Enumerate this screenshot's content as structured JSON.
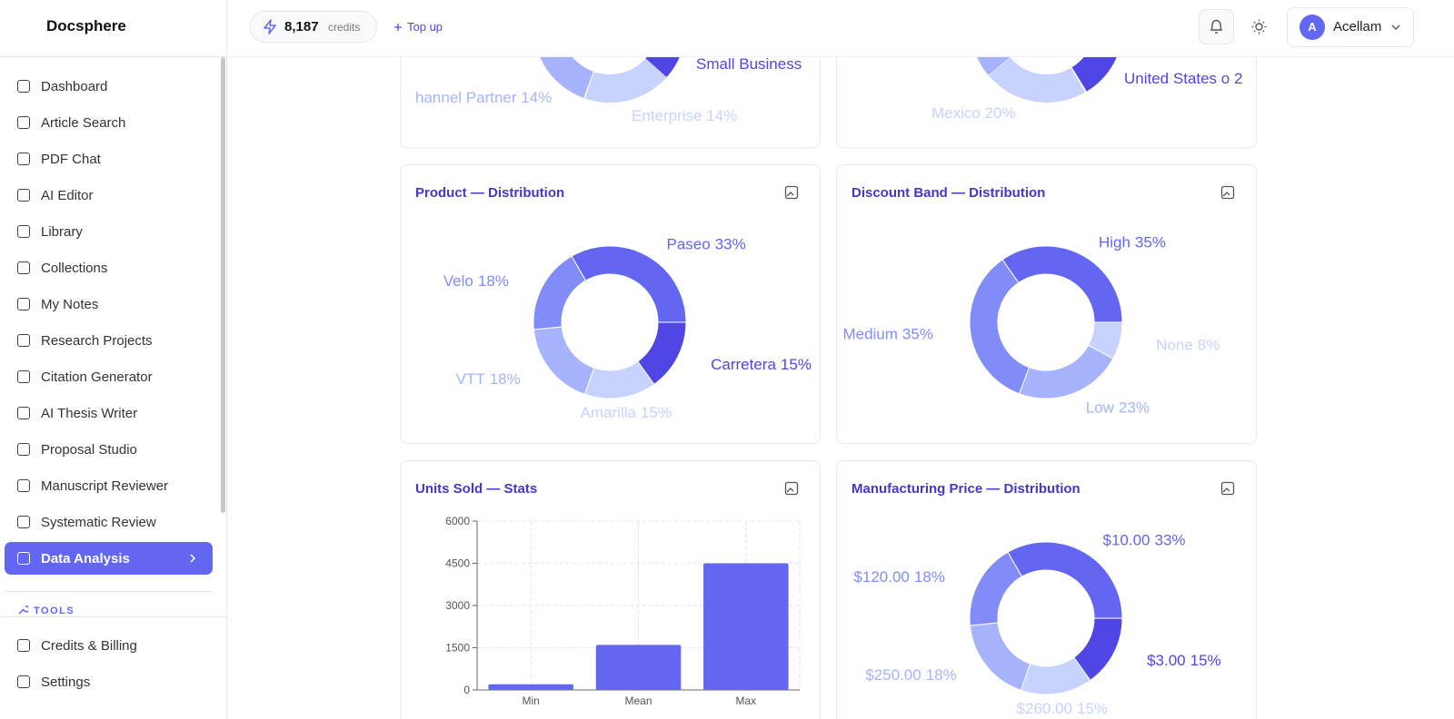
{
  "sidebar": {
    "brand": "Docsphere",
    "nav": [
      "Dashboard",
      "Article Search",
      "PDF Chat",
      "AI Editor",
      "Library",
      "Collections",
      "My Notes",
      "Research Projects",
      "Citation Generator",
      "AI Thesis Writer",
      "Proposal Studio",
      "Manuscript Reviewer",
      "Systematic Review",
      "Data Analysis"
    ],
    "section": "TOOLS",
    "bottom": [
      "Credits & Billing",
      "Settings"
    ]
  },
  "topbar": {
    "credits": "8,187",
    "credits_unit": "credits",
    "top_up": "Top up",
    "avatar": "A",
    "user": "Acellam"
  },
  "partial_cards": [
    {
      "labels": [
        "Small Business",
        "hannel Partner 14%",
        "Enterprise 14%"
      ]
    },
    {
      "labels": [
        "United States o 2",
        "Mexico 20%"
      ]
    }
  ],
  "chart_data": [
    {
      "type": "donut",
      "title": "Product — Distribution",
      "categories": [
        "Paseo",
        "Carretera",
        "Amarilla",
        "VTT",
        "Velo"
      ],
      "values": [
        33,
        15,
        15,
        18,
        18
      ],
      "value_labels": [
        "33%",
        "15%",
        "15%",
        "18%",
        "18%"
      ],
      "colors": [
        "#6366f1",
        "#4f46e5",
        "#c7d2fe",
        "#a5b4fc",
        "#818cf8"
      ]
    },
    {
      "type": "donut",
      "title": "Discount Band — Distribution",
      "categories": [
        "High",
        "None",
        "Low",
        "Medium"
      ],
      "values": [
        35,
        8,
        23,
        35
      ],
      "value_labels": [
        "35%",
        "8%",
        "23%",
        "35%"
      ],
      "colors": [
        "#6366f1",
        "#c7d2fe",
        "#a5b4fc",
        "#818cf8"
      ]
    },
    {
      "type": "bar",
      "title": "Units Sold — Stats",
      "categories": [
        "Min",
        "Mean",
        "Max"
      ],
      "values": [
        200,
        1600,
        4500
      ],
      "color": "#6366f1",
      "ylim": [
        0,
        6000
      ],
      "yticks": [
        0,
        1500,
        3000,
        4500,
        6000
      ],
      "grid": true
    },
    {
      "type": "donut",
      "title": "Manufacturing Price — Distribution",
      "categories": [
        "$10.00",
        "$3.00",
        "$260.00",
        "$250.00",
        "$120.00"
      ],
      "values": [
        33,
        15,
        15,
        18,
        18
      ],
      "value_labels": [
        "33%",
        "15%",
        "15%",
        "18%",
        "18%"
      ],
      "colors": [
        "#6366f1",
        "#4f46e5",
        "#c7d2fe",
        "#a5b4fc",
        "#818cf8"
      ]
    }
  ]
}
